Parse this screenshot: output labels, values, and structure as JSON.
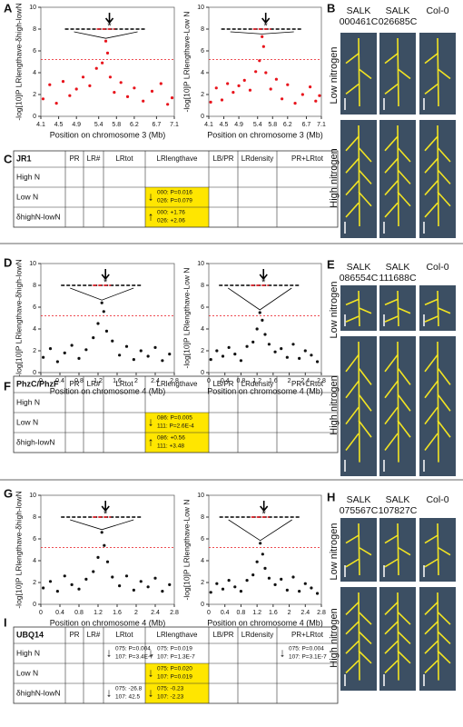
{
  "panels": {
    "a": "A",
    "b": "B",
    "c": "C",
    "d": "D",
    "e": "E",
    "f": "F",
    "g": "G",
    "h": "H",
    "i": "I"
  },
  "chart_data": [
    {
      "type": "scatter",
      "ylabel": "-log[10]P  LRlengthave-δhigh-lowN",
      "xlabel": "Position on chromosome 3 (Mb)",
      "color": "#e8141c",
      "annotation": "*",
      "threshold": 5.2,
      "xlim": [
        4.1,
        7.1
      ],
      "xticks": [
        4.1,
        4.5,
        4.9,
        5.4,
        5.8,
        6.2,
        6.7,
        7.1
      ],
      "ylim": [
        0,
        10
      ],
      "yticks": [
        0,
        2,
        4,
        6,
        8,
        10
      ],
      "x": [
        4.15,
        4.3,
        4.45,
        4.6,
        4.75,
        4.9,
        5.05,
        5.2,
        5.35,
        5.48,
        5.56,
        5.6,
        5.66,
        5.75,
        5.9,
        6.05,
        6.2,
        6.4,
        6.6,
        6.8,
        6.95,
        7.05
      ],
      "y": [
        1.6,
        2.9,
        1.2,
        3.2,
        1.9,
        2.5,
        3.6,
        2.8,
        4.4,
        4.9,
        6.9,
        5.8,
        3.6,
        2.2,
        3.1,
        1.8,
        2.6,
        1.4,
        2.3,
        3.0,
        1.1,
        1.7
      ]
    },
    {
      "type": "scatter",
      "ylabel": "-log[10]P  LRlengthave-Low N",
      "xlabel": "Position on chromosome 3 (Mb)",
      "color": "#e8141c",
      "annotation": "*",
      "threshold": 5.2,
      "xlim": [
        4.1,
        7.1
      ],
      "xticks": [
        4.1,
        4.5,
        4.9,
        5.4,
        5.8,
        6.2,
        6.7,
        7.1
      ],
      "ylim": [
        0,
        10
      ],
      "yticks": [
        0,
        2,
        4,
        6,
        8,
        10
      ],
      "x": [
        4.15,
        4.3,
        4.45,
        4.6,
        4.75,
        4.9,
        5.05,
        5.2,
        5.35,
        5.45,
        5.52,
        5.56,
        5.62,
        5.75,
        5.9,
        6.05,
        6.2,
        6.4,
        6.6,
        6.8,
        6.95,
        7.05
      ],
      "y": [
        1.3,
        2.6,
        1.5,
        3.0,
        2.2,
        2.8,
        3.3,
        2.4,
        4.1,
        5.1,
        7.3,
        6.4,
        4.0,
        2.5,
        3.4,
        1.6,
        2.9,
        1.2,
        2.0,
        2.7,
        1.4,
        1.9
      ]
    },
    {
      "type": "scatter",
      "ylabel": "-log[10]P  LRlengthave-δhigh-lowN",
      "xlabel": "Position on chromosome 4 (Mb)",
      "color": "#111111",
      "annotation": "*",
      "threshold": 5.2,
      "xlim": [
        0,
        2.8
      ],
      "xticks": [
        0,
        0.4,
        0.8,
        1.2,
        1.6,
        2,
        2.4,
        2.8
      ],
      "ylim": [
        0,
        10
      ],
      "yticks": [
        0,
        2,
        4,
        6,
        8,
        10
      ],
      "x": [
        0.05,
        0.2,
        0.35,
        0.5,
        0.65,
        0.8,
        0.95,
        1.1,
        1.2,
        1.28,
        1.32,
        1.38,
        1.5,
        1.65,
        1.8,
        1.95,
        2.1,
        2.25,
        2.4,
        2.55,
        2.7
      ],
      "y": [
        1.4,
        2.2,
        1.0,
        1.8,
        2.5,
        1.3,
        2.1,
        3.2,
        4.5,
        6.4,
        5.6,
        3.8,
        2.9,
        1.6,
        2.4,
        1.2,
        2.0,
        1.5,
        2.3,
        1.1,
        1.7
      ]
    },
    {
      "type": "scatter",
      "ylabel": "-log[10]P  LRlengthave-Low N",
      "xlabel": "Position on chromosome 4 (Mb)",
      "color": "#111111",
      "annotation": "*",
      "threshold": 5.2,
      "xlim": [
        0,
        2.8
      ],
      "xticks": [
        0,
        0.4,
        0.8,
        1.2,
        1.6,
        2,
        2.4,
        2.8
      ],
      "ylim": [
        0,
        10
      ],
      "yticks": [
        0,
        2,
        4,
        6,
        8,
        10
      ],
      "x": [
        0.05,
        0.2,
        0.35,
        0.5,
        0.65,
        0.8,
        0.95,
        1.1,
        1.2,
        1.27,
        1.33,
        1.4,
        1.5,
        1.65,
        1.8,
        1.95,
        2.1,
        2.25,
        2.4,
        2.55,
        2.7
      ],
      "y": [
        1.2,
        2.0,
        1.5,
        2.3,
        1.7,
        1.1,
        2.4,
        2.8,
        4.0,
        5.5,
        4.8,
        3.5,
        2.6,
        1.9,
        2.2,
        1.4,
        2.6,
        1.3,
        2.0,
        1.6,
        1.0
      ]
    },
    {
      "type": "scatter",
      "ylabel": "-log[10]P  LRlengthave-δhigh-lowN",
      "xlabel": "Position on chromosome 4 (Mb)",
      "color": "#111111",
      "annotation": "*",
      "threshold": 5.2,
      "xlim": [
        0,
        2.8
      ],
      "xticks": [
        0,
        0.4,
        0.8,
        1.2,
        1.6,
        2,
        2.4,
        2.8
      ],
      "ylim": [
        0,
        10
      ],
      "yticks": [
        0,
        2,
        4,
        6,
        8,
        10
      ],
      "x": [
        0.05,
        0.2,
        0.35,
        0.5,
        0.65,
        0.8,
        0.95,
        1.1,
        1.2,
        1.28,
        1.33,
        1.4,
        1.5,
        1.65,
        1.8,
        1.95,
        2.1,
        2.25,
        2.4,
        2.55,
        2.7
      ],
      "y": [
        1.5,
        2.1,
        1.2,
        2.6,
        1.8,
        1.4,
        2.3,
        3.0,
        4.3,
        6.6,
        5.4,
        3.9,
        2.5,
        1.7,
        2.6,
        1.3,
        2.1,
        1.6,
        2.4,
        1.2,
        1.8
      ]
    },
    {
      "type": "scatter",
      "ylabel": "-log[10]P  LRlengthave-Low N",
      "xlabel": "Position on chromosome 4 (Mb)",
      "color": "#111111",
      "annotation": "*",
      "threshold": 5.2,
      "xlim": [
        0,
        2.8
      ],
      "xticks": [
        0,
        0.4,
        0.8,
        1.2,
        1.6,
        2,
        2.4,
        2.8
      ],
      "ylim": [
        0,
        10
      ],
      "yticks": [
        0,
        2,
        4,
        6,
        8,
        10
      ],
      "x": [
        0.05,
        0.2,
        0.35,
        0.5,
        0.65,
        0.8,
        0.95,
        1.1,
        1.2,
        1.28,
        1.34,
        1.4,
        1.5,
        1.65,
        1.8,
        1.95,
        2.1,
        2.25,
        2.4,
        2.55,
        2.7
      ],
      "y": [
        1.1,
        1.9,
        1.4,
        2.2,
        1.6,
        1.2,
        2.2,
        2.7,
        3.9,
        5.6,
        4.6,
        3.3,
        2.4,
        1.8,
        2.3,
        1.3,
        2.5,
        1.2,
        1.9,
        1.5,
        1.0
      ]
    }
  ],
  "photos": [
    {
      "samples": [
        "SALK\n000461C",
        "SALK\n026685C",
        "Col-0"
      ],
      "low": "Low  nitrogen",
      "high": "High  nitrogen"
    },
    {
      "samples": [
        "SALK\n086554C",
        "SALK\n111688C",
        "Col-0"
      ],
      "low": "Low  nitrogen",
      "high": "High  nitrogen"
    },
    {
      "samples": [
        "SALK\n075567C",
        "SALK\n107827C",
        "Col-0"
      ],
      "low": "Low  nitrogen",
      "high": "High  nitrogen"
    }
  ],
  "tables": [
    {
      "columns": [
        "JR1",
        "PR",
        "LR#",
        "LRtot",
        "LRlengthave",
        "LB/PR",
        "LRdensity",
        "PR+LRtot"
      ],
      "rows": [
        {
          "label": "High N",
          "cells": []
        },
        {
          "label": "Low N",
          "cells": [
            {
              "col": 4,
              "arrow": "↓",
              "lines": [
                "000: P=0.016",
                "026: P=0.079"
              ],
              "highlight": true
            }
          ]
        },
        {
          "label": "δhighN-lowN",
          "cells": [
            {
              "col": 4,
              "arrow": "↑",
              "lines": [
                "000: +1.76",
                "026: +2.06"
              ],
              "highlight": true
            }
          ]
        }
      ]
    },
    {
      "columns": [
        "PhzC/PhzF",
        "PR",
        "LR#",
        "LRtot",
        "LRlengthave",
        "LB/PR",
        "LRdensity",
        "PR+LRtot"
      ],
      "rows": [
        {
          "label": "High N",
          "cells": []
        },
        {
          "label": "Low N",
          "cells": [
            {
              "col": 4,
              "arrow": "↓",
              "lines": [
                "086: P=0.005",
                "111: P=2.6E-4"
              ],
              "highlight": true
            }
          ]
        },
        {
          "label": "δhigh-lowN",
          "cells": [
            {
              "col": 4,
              "arrow": "↑",
              "lines": [
                "086: +0.56",
                "111: +3.48"
              ],
              "highlight": true
            }
          ]
        }
      ]
    },
    {
      "columns": [
        "UBQ14",
        "PR",
        "LR#",
        "LRtot",
        "LRlengthave",
        "LB/PR",
        "LRdensity",
        "PR+LRtot"
      ],
      "rows": [
        {
          "label": "High N",
          "cells": [
            {
              "col": 3,
              "arrow": "↓",
              "lines": [
                "075: P=0.004",
                "107: P=3.4E-7"
              ],
              "highlight": false
            },
            {
              "col": 4,
              "arrow": "↓",
              "lines": [
                "075: P=0.019",
                "107: P=1.3E-7"
              ],
              "highlight": false
            },
            {
              "col": 7,
              "arrow": "↓",
              "lines": [
                "075: P=0.004",
                "107: P=3.1E-7"
              ],
              "highlight": false
            }
          ]
        },
        {
          "label": "Low N",
          "cells": [
            {
              "col": 4,
              "arrow": "↓",
              "lines": [
                "075: P=0.020",
                "107: P=0.019"
              ],
              "highlight": true
            }
          ]
        },
        {
          "label": "δhighN-lowN",
          "cells": [
            {
              "col": 3,
              "arrow": "↓",
              "lines": [
                "075: -26.8",
                "107: 42.5"
              ],
              "highlight": false
            },
            {
              "col": 4,
              "arrow": "↓",
              "lines": [
                "075: -0.23",
                "107: -2.23"
              ],
              "highlight": true
            }
          ]
        }
      ]
    }
  ]
}
